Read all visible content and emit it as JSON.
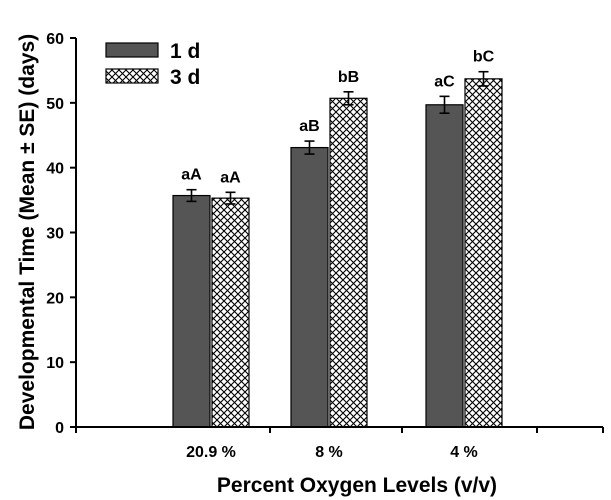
{
  "chart_data": {
    "type": "bar",
    "title": "",
    "xlabel": "Percent Oxygen Levels (v/v)",
    "ylabel": "Developmental Time (Mean ± SE) (days)",
    "categories": [
      "20.9 %",
      "8 %",
      "4 %"
    ],
    "ylim": [
      0,
      60
    ],
    "yticks": [
      0,
      10,
      20,
      30,
      40,
      50,
      60
    ],
    "legend": "top-left",
    "grid": false,
    "series": [
      {
        "name": "1 d",
        "color": "#555555",
        "pattern": "solid",
        "values": [
          35.7,
          43.1,
          49.7
        ],
        "errors": [
          0.9,
          1.0,
          1.3
        ],
        "labels": [
          "aA",
          "aB",
          "aC"
        ]
      },
      {
        "name": "3 d",
        "color": "#ffffff",
        "pattern": "crosshatch",
        "values": [
          35.3,
          50.7,
          53.7
        ],
        "errors": [
          0.9,
          1.0,
          1.1
        ],
        "labels": [
          "aA",
          "bB",
          "bC"
        ]
      }
    ]
  }
}
